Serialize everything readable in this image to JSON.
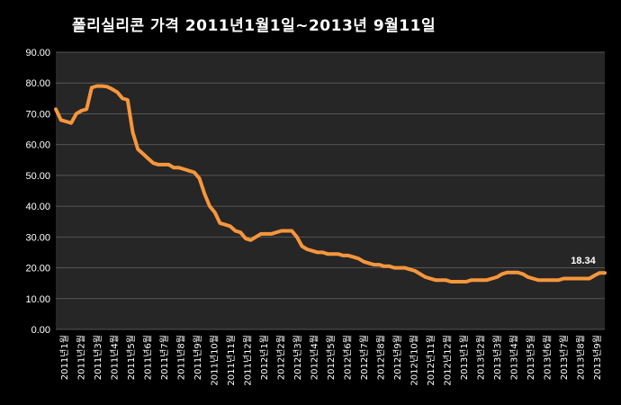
{
  "chart_data": {
    "type": "line",
    "title": "폴리실리콘 가격    2011년1월1일~2013년 9월11일",
    "xlabel": "",
    "ylabel": "",
    "ylim": [
      0,
      90
    ],
    "yticks": [
      "0.00",
      "10.00",
      "20.00",
      "30.00",
      "40.00",
      "50.00",
      "60.00",
      "70.00",
      "80.00",
      "90.00"
    ],
    "grid": true,
    "legend": "none",
    "x_tick_labels": [
      "2011년1월",
      "2011년2월",
      "2011년3월",
      "2011년4월",
      "2011년5월",
      "2011년6월",
      "2011년7월",
      "2011년8월",
      "2011년9월",
      "2011년10월",
      "2011년11월",
      "2011년12월",
      "2012년1월",
      "2012년2월",
      "2012년3월",
      "2012년4월",
      "2012년5월",
      "2012년6월",
      "2012년7월",
      "2012년8월",
      "2012년9월",
      "2012년10월",
      "2012년11월",
      "2012년12월",
      "2013년1월",
      "2013년2월",
      "2013년3월",
      "2013년4월",
      "2013년5월",
      "2013년6월",
      "2013년7월",
      "2013년8월",
      "2013년9월"
    ],
    "series": [
      {
        "color": "#f7963c",
        "values": [
          71.5,
          68.0,
          67.5,
          67.0,
          70.0,
          71.0,
          71.5,
          78.5,
          79.0,
          79.0,
          78.8,
          78.0,
          77.0,
          75.0,
          74.5,
          64.0,
          58.5,
          57.0,
          55.5,
          54.0,
          53.5,
          53.5,
          53.5,
          52.5,
          52.5,
          52.0,
          51.5,
          51.0,
          49.0,
          44.0,
          40.0,
          38.0,
          34.5,
          34.0,
          33.5,
          32.0,
          31.5,
          29.5,
          29.0,
          30.0,
          31.0,
          31.0,
          31.0,
          31.5,
          32.0,
          32.0,
          32.0,
          30.0,
          27.0,
          26.0,
          25.5,
          25.0,
          25.0,
          24.5,
          24.5,
          24.5,
          24.0,
          24.0,
          23.5,
          23.0,
          22.0,
          21.5,
          21.0,
          21.0,
          20.5,
          20.5,
          20.0,
          20.0,
          20.0,
          19.5,
          19.0,
          18.0,
          17.0,
          16.5,
          16.0,
          16.0,
          16.0,
          15.5,
          15.5,
          15.5,
          15.5,
          16.0,
          16.0,
          16.0,
          16.0,
          16.5,
          17.0,
          18.0,
          18.5,
          18.5,
          18.5,
          18.0,
          17.0,
          16.5,
          16.0,
          16.0,
          16.0,
          16.0,
          16.0,
          16.5,
          16.5,
          16.5,
          16.5,
          16.5,
          16.5,
          17.5,
          18.34,
          18.34
        ]
      }
    ],
    "annotations": [
      {
        "text": "18.34",
        "series_index": 0,
        "point": "last"
      }
    ]
  }
}
